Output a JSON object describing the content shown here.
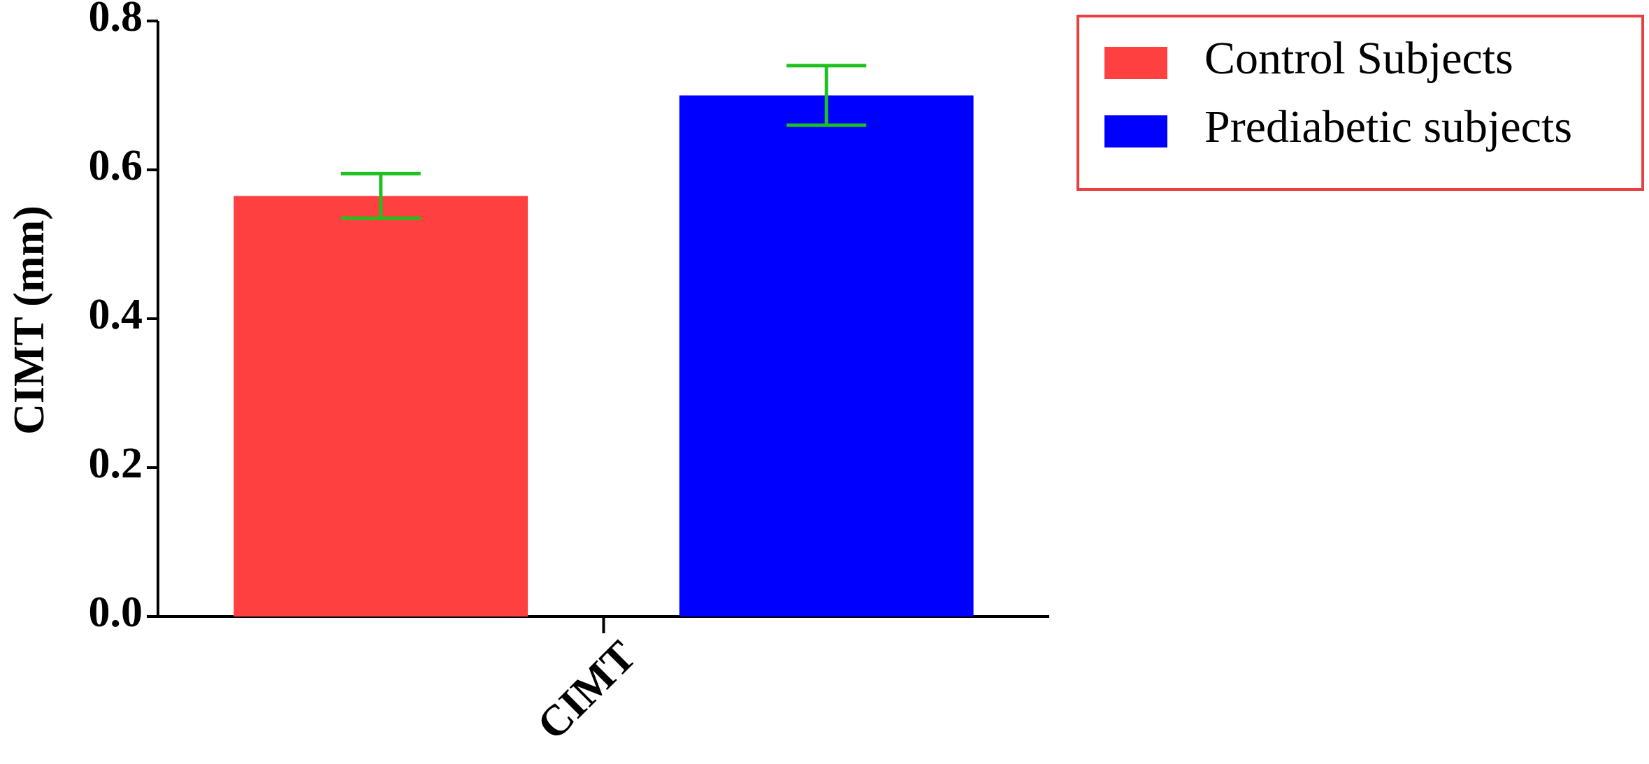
{
  "chart_data": {
    "type": "bar",
    "y_label": "CIMT (mm)",
    "categories": [
      "CIMT"
    ],
    "series": [
      {
        "name": "Control Subjects",
        "color": "#ff4040",
        "values": [
          0.565
        ],
        "errors": [
          0.03
        ]
      },
      {
        "name": "Prediabetic subjects",
        "color": "#0000ff",
        "values": [
          0.7
        ],
        "errors": [
          0.04
        ]
      }
    ],
    "error_color": "#1ec21e",
    "ylim": [
      0,
      0.8
    ],
    "yticks": [
      {
        "value": 0,
        "label": "0.0"
      },
      0.2,
      0.4,
      0.6,
      0.8
    ],
    "legend": "top-right"
  }
}
